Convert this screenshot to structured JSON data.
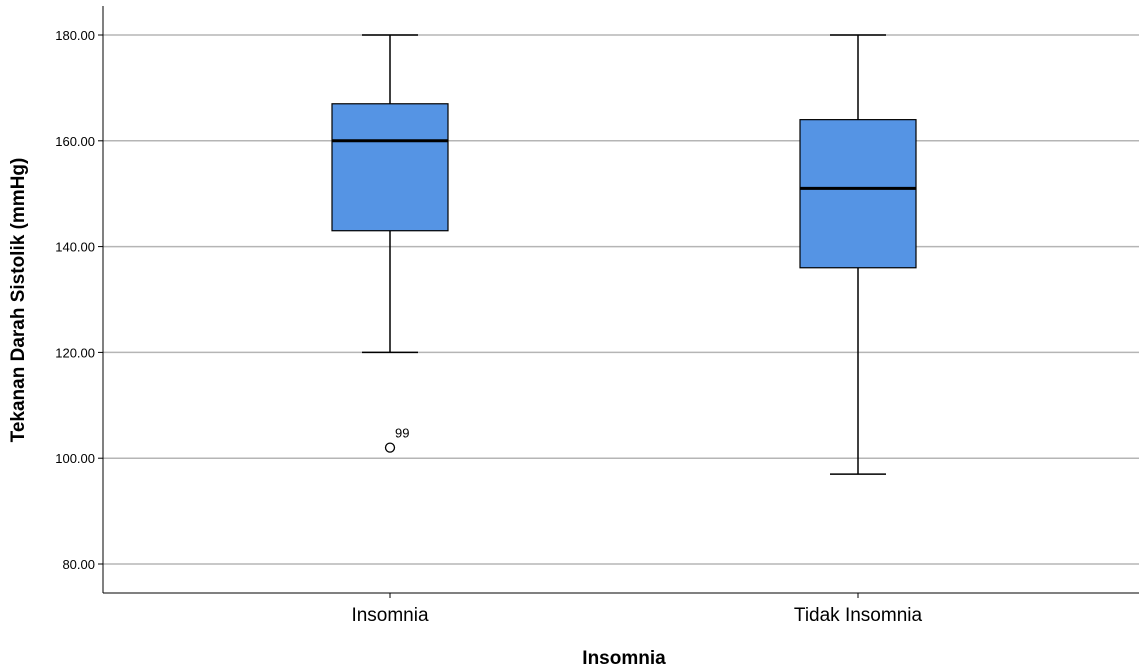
{
  "chart_data": {
    "type": "boxplot",
    "title": "",
    "xlabel": "Insomnia",
    "ylabel": "Tekanan Darah Sistolik (mmHg)",
    "ylim": [
      75,
      185
    ],
    "yticks": [
      "80.00",
      "100.00",
      "120.00",
      "140.00",
      "160.00",
      "180.00"
    ],
    "grid": true,
    "box_color": "#5594e4",
    "categories": [
      "Insomnia",
      "Tidak Insomnia"
    ],
    "boxes": [
      {
        "category": "Insomnia",
        "whisker_low": 120,
        "q1": 143,
        "median": 160,
        "q3": 167,
        "whisker_high": 180,
        "outliers": [
          {
            "value": 102,
            "label": "99"
          }
        ]
      },
      {
        "category": "Tidak Insomnia",
        "whisker_low": 97,
        "q1": 136,
        "median": 151,
        "q3": 164,
        "whisker_high": 180,
        "outliers": []
      }
    ]
  }
}
